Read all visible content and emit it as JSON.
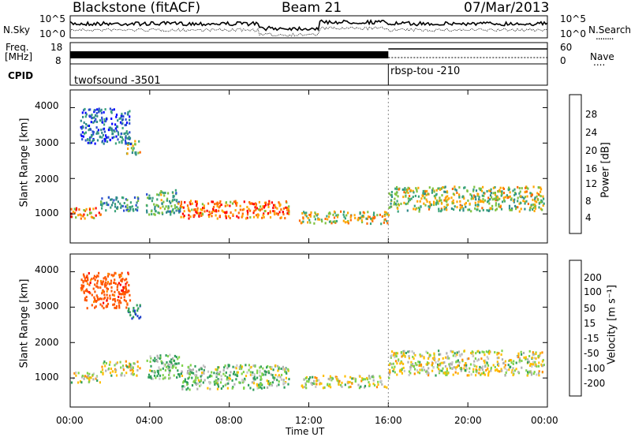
{
  "header": {
    "title_left": "Blackstone (fitACF)",
    "title_center": "Beam 21",
    "title_right": "07/Mar/2013"
  },
  "side_labels": {
    "nsky": "N.Sky",
    "nsearch": "N.Search",
    "nsearch_dots": "........",
    "freq": "Freq.",
    "freq_unit": "[MHz]",
    "nave": "Nave",
    "nave_dots": "....",
    "cpid": "CPID"
  },
  "noise_panel": {
    "left_ticks": [
      "10^5",
      "10^0"
    ],
    "right_ticks": [
      "10^5",
      "10^0"
    ]
  },
  "freq_panel": {
    "left_ticks": [
      "18",
      "8"
    ],
    "right_ticks": [
      "60",
      "0"
    ]
  },
  "cpid_panel": {
    "segments": [
      {
        "label": "twofsound -3501",
        "start_hour": 0
      },
      {
        "label": "rbsp-tou -210",
        "start_hour": 16
      }
    ]
  },
  "colors": {
    "scatter_fill": "#f7f7f7",
    "power_scale": [
      "#0000ff",
      "#2b4fd0",
      "#2f8a8a",
      "#3aa37a",
      "#7fc23f",
      "#ffa500",
      "#ff6a00",
      "#ff0000"
    ],
    "velocity_scale": [
      "#ff0000",
      "#ff5500",
      "#ff8c00",
      "#ffbf00",
      "#c8c8c8",
      "#b0b0b0",
      "#7fd34a",
      "#2f9e5a",
      "#1e3fc8",
      "#0a0aa0"
    ]
  },
  "power_colorbar": {
    "label": "Power [dB]",
    "ticks": [
      "28",
      "24",
      "20",
      "16",
      "12",
      "8",
      "4"
    ]
  },
  "velocity_colorbar": {
    "label": "Velocity [m s⁻¹]",
    "ticks": [
      "200",
      "100",
      "50",
      "15",
      "-15",
      "-50",
      "-100",
      "-200"
    ]
  },
  "axes": {
    "ylabel": "Slant Range [km]",
    "xlabel": "Time UT",
    "yticks": [
      "4000",
      "3000",
      "2000",
      "1000"
    ],
    "xticks": [
      "00:00",
      "04:00",
      "08:00",
      "12:00",
      "16:00",
      "20:00",
      "00:00"
    ]
  },
  "chart_data": [
    {
      "type": "heatmap",
      "panel": "power",
      "x_range_hours": [
        0,
        24
      ],
      "ylim_km": [
        180,
        4500
      ],
      "ylabel": "Slant Range [km]",
      "xlabel": "",
      "colorbar": {
        "label": "Power [dB]",
        "range": [
          0,
          32
        ]
      },
      "echo_regions": [
        {
          "t0": 0.0,
          "t1": 1.5,
          "r0": 900,
          "r1": 1200,
          "value_db": 24
        },
        {
          "t0": 1.5,
          "t1": 3.5,
          "r0": 1100,
          "r1": 1500,
          "value_db": 12
        },
        {
          "t0": 2.8,
          "t1": 3.5,
          "r0": 2700,
          "r1": 3100,
          "value_db": 18
        },
        {
          "t0": 0.5,
          "t1": 3.0,
          "r0": 3000,
          "r1": 4000,
          "value_db": 8
        },
        {
          "t0": 3.8,
          "t1": 5.5,
          "r0": 1000,
          "r1": 1700,
          "value_db": 14
        },
        {
          "t0": 5.5,
          "t1": 11.0,
          "r0": 900,
          "r1": 1400,
          "value_db": 26
        },
        {
          "t0": 11.5,
          "t1": 16.0,
          "r0": 750,
          "r1": 1100,
          "value_db": 20
        },
        {
          "t0": 16.0,
          "t1": 23.8,
          "r0": 1100,
          "r1": 1800,
          "value_db": 18
        }
      ]
    },
    {
      "type": "heatmap",
      "panel": "velocity",
      "x_range_hours": [
        0,
        24
      ],
      "ylim_km": [
        180,
        4500
      ],
      "ylabel": "Slant Range [km]",
      "xlabel": "Time UT",
      "colorbar": {
        "label": "Velocity [m s⁻¹]",
        "range": [
          -200,
          200
        ]
      },
      "echo_regions": [
        {
          "t0": 0.0,
          "t1": 1.5,
          "r0": 900,
          "r1": 1200,
          "value_ms": 0
        },
        {
          "t0": 1.5,
          "t1": 3.5,
          "r0": 1100,
          "r1": 1500,
          "value_ms": 0
        },
        {
          "t0": 2.8,
          "t1": 3.5,
          "r0": 2700,
          "r1": 3100,
          "value_ms": 100
        },
        {
          "t0": 0.5,
          "t1": 3.0,
          "r0": 3000,
          "r1": 4000,
          "value_ms": -150
        },
        {
          "t0": 3.8,
          "t1": 5.5,
          "r0": 1000,
          "r1": 1700,
          "value_ms": 40
        },
        {
          "t0": 5.5,
          "t1": 11.0,
          "r0": 700,
          "r1": 1400,
          "value_ms": 30
        },
        {
          "t0": 11.5,
          "t1": 16.0,
          "r0": 750,
          "r1": 1100,
          "value_ms": 0
        },
        {
          "t0": 16.0,
          "t1": 23.8,
          "r0": 1100,
          "r1": 1800,
          "value_ms": 0
        }
      ]
    }
  ]
}
